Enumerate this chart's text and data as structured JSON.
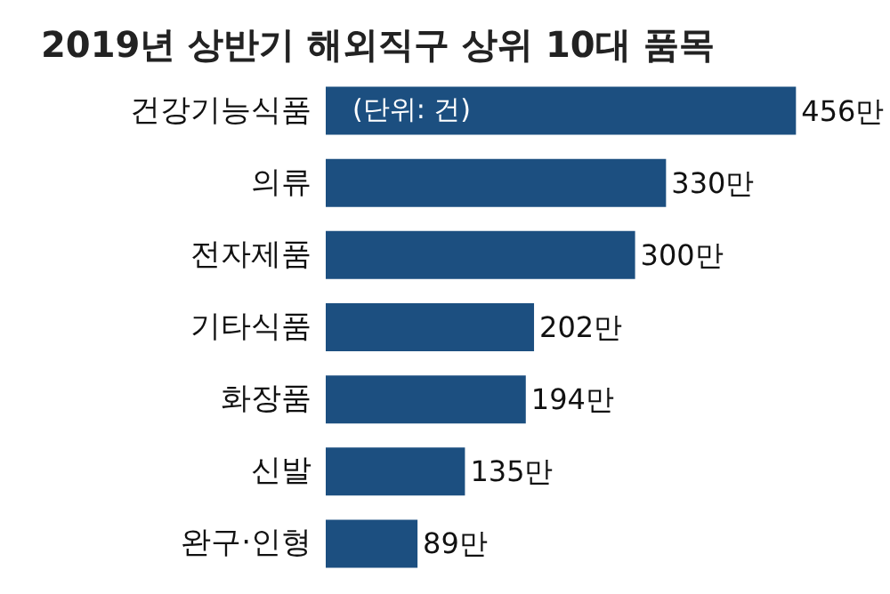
{
  "chart_data": {
    "type": "bar",
    "orientation": "horizontal",
    "title": "2019년 상반기 해외직구 상위 10대 품목",
    "categories": [
      "건강기능식품",
      "의류",
      "전자제품",
      "기타식품",
      "화장품",
      "신발",
      "완구·인형"
    ],
    "values": [
      456,
      330,
      300,
      202,
      194,
      135,
      89
    ],
    "value_labels": [
      "456만",
      "330만",
      "300만",
      "202만",
      "194만",
      "135만",
      "89만"
    ],
    "color": "#1c4f80",
    "annotations": [
      "(단위: 건)"
    ]
  }
}
